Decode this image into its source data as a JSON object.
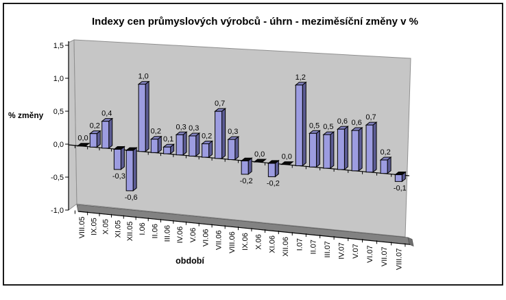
{
  "chart_data": {
    "type": "bar",
    "style": "3d-column",
    "title": "Indexy cen průmyslových výrobců - úhrn - meziměsíční změny v %",
    "xlabel": "období",
    "ylabel": "% změny",
    "categories": [
      "VIII.05",
      "IX.05",
      "X.05",
      "XI.05",
      "XII.05",
      "I.06",
      "II.06",
      "III.06",
      "IV.06",
      "V.06",
      "VI.06",
      "VII.06",
      "VIII.06",
      "IX.06",
      "X.06",
      "XI.06",
      "XII.06",
      "I.07",
      "II.07",
      "III.07",
      "IV.07",
      "V.07",
      "VI.07",
      "VII.07",
      "VIII.07"
    ],
    "values": [
      0.0,
      0.2,
      0.4,
      -0.3,
      -0.6,
      1.0,
      0.2,
      0.1,
      0.3,
      0.3,
      0.2,
      0.7,
      0.3,
      -0.2,
      0.0,
      -0.2,
      0.0,
      1.2,
      0.5,
      0.5,
      0.6,
      0.6,
      0.7,
      0.2,
      -0.1
    ],
    "value_labels": [
      "0,0",
      "0,2",
      "0,4",
      "-0,3",
      "-0,6",
      "1,0",
      "0,2",
      "0,1",
      "0,3",
      "0,3",
      "0,2",
      "0,7",
      "0,3",
      "-0,2",
      "0,0",
      "-0,2",
      "0,0",
      "1,2",
      "0,5",
      "0,5",
      "0,6",
      "0,6",
      "0,7",
      "0,2",
      "-0,1"
    ],
    "y_tick_labels": [
      "1,5",
      "1,0",
      "0,5",
      "0,0",
      "-0,5",
      "-1,0"
    ],
    "y_tick_values": [
      1.5,
      1.0,
      0.5,
      0.0,
      -0.5,
      -1.0
    ],
    "ylim": [
      -1.0,
      1.5
    ],
    "y_step": 0.5,
    "grid": false,
    "legend": "none",
    "decimal_separator": ",",
    "colors": {
      "bar_front": "#9c9ce0",
      "bar_side": "#5c5c94",
      "bar_top": "#8282c0",
      "bar_outline": "#000000",
      "zero_marker": "#0a0a0a",
      "wall": "#c6c6c6",
      "wall_edge": "#8f8f8f",
      "floor_front": "#828282",
      "floor_side": "#6e6e6e",
      "background": "#ffffff",
      "border": "#000000",
      "text": "#000000"
    }
  }
}
